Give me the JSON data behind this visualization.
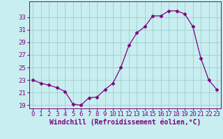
{
  "x": [
    0,
    1,
    2,
    3,
    4,
    5,
    6,
    7,
    8,
    9,
    10,
    11,
    12,
    13,
    14,
    15,
    16,
    17,
    18,
    19,
    20,
    21,
    22,
    23
  ],
  "y": [
    23.0,
    22.5,
    22.2,
    21.8,
    21.2,
    19.2,
    19.0,
    20.2,
    20.3,
    21.5,
    22.5,
    25.0,
    28.5,
    30.5,
    31.5,
    33.2,
    33.2,
    34.0,
    34.0,
    33.5,
    31.5,
    26.5,
    23.0,
    21.5
  ],
  "line_color": "#800080",
  "marker": "D",
  "marker_size": 2.5,
  "bg_color": "#c8eef0",
  "grid_color": "#a0ccd0",
  "xlabel": "Windchill (Refroidissement éolien,°C)",
  "xlabel_color": "#800080",
  "tick_color": "#800080",
  "ylim": [
    18.5,
    35.5
  ],
  "xlim": [
    -0.5,
    23.5
  ],
  "yticks": [
    19,
    21,
    23,
    25,
    27,
    29,
    31,
    33
  ],
  "xticks": [
    0,
    1,
    2,
    3,
    4,
    5,
    6,
    7,
    8,
    9,
    10,
    11,
    12,
    13,
    14,
    15,
    16,
    17,
    18,
    19,
    20,
    21,
    22,
    23
  ],
  "tick_fontsize": 6.5,
  "xlabel_fontsize": 7.0
}
